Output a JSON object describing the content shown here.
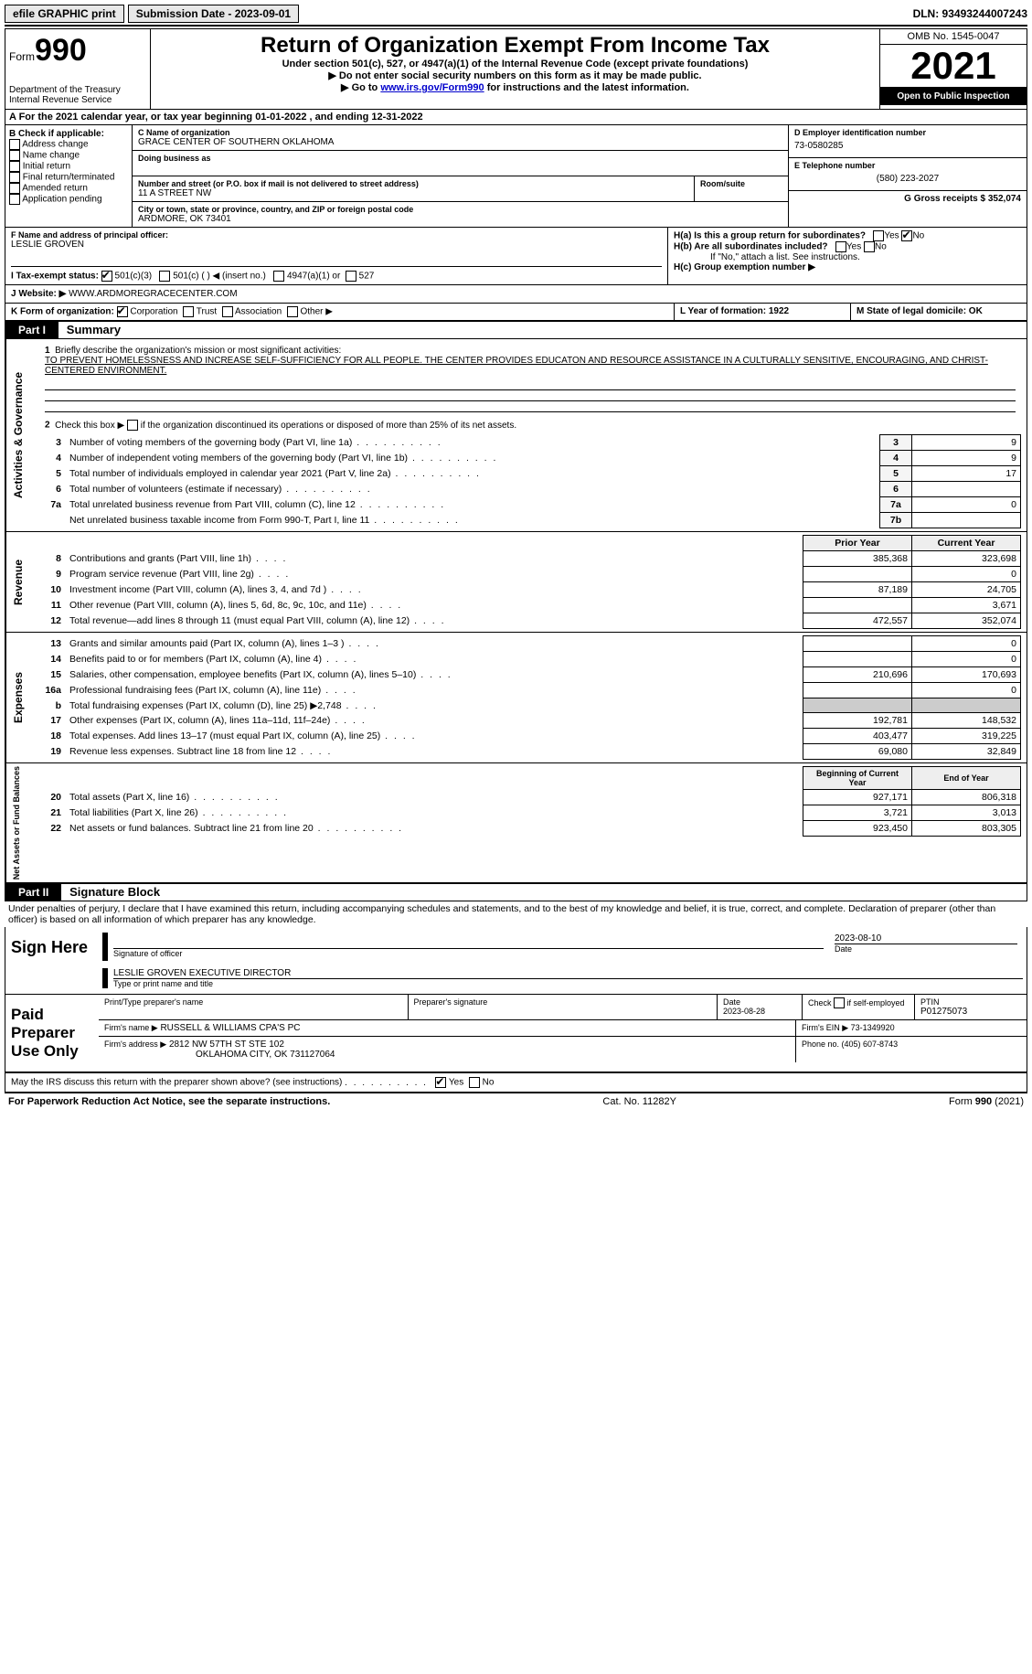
{
  "top": {
    "efile": "efile GRAPHIC print",
    "sub_date_label": "Submission Date - 2023-09-01",
    "dln": "DLN: 93493244007243"
  },
  "header": {
    "form_label": "Form",
    "form_num": "990",
    "dept": "Department of the Treasury",
    "irs": "Internal Revenue Service",
    "title": "Return of Organization Exempt From Income Tax",
    "sub1": "Under section 501(c), 527, or 4947(a)(1) of the Internal Revenue Code (except private foundations)",
    "sub2": "▶ Do not enter social security numbers on this form as it may be made public.",
    "sub3_pre": "▶ Go to ",
    "sub3_link": "www.irs.gov/Form990",
    "sub3_post": " for instructions and the latest information.",
    "omb": "OMB No. 1545-0047",
    "year": "2021",
    "open": "Open to Public Inspection"
  },
  "row_a": "A  For the 2021 calendar year, or tax year beginning 01-01-2022    , and ending 12-31-2022",
  "col_b": {
    "label": "B Check if applicable:",
    "items": [
      "Address change",
      "Name change",
      "Initial return",
      "Final return/terminated",
      "Amended return",
      "Application pending"
    ]
  },
  "col_c": {
    "name_label": "C Name of organization",
    "name": "GRACE CENTER OF SOUTHERN OKLAHOMA",
    "dba_label": "Doing business as",
    "addr_label": "Number and street (or P.O. box if mail is not delivered to street address)",
    "addr": "11 A STREET NW",
    "room_label": "Room/suite",
    "city_label": "City or town, state or province, country, and ZIP or foreign postal code",
    "city": "ARDMORE, OK  73401"
  },
  "col_d": {
    "d_label": "D Employer identification number",
    "ein": "73-0580285",
    "e_label": "E Telephone number",
    "phone": "(580) 223-2027",
    "g_label": "G Gross receipts $ 352,074"
  },
  "row_f": {
    "f_label": "F  Name and address of principal officer:",
    "officer": "LESLIE GROVEN",
    "ha_label": "H(a)  Is this a group return for subordinates?",
    "hb_label": "H(b)  Are all subordinates included?",
    "hb_note": "If \"No,\" attach a list. See instructions.",
    "hc_label": "H(c)  Group exemption number ▶"
  },
  "row_i": {
    "label": "I    Tax-exempt status:",
    "opt1": "501(c)(3)",
    "opt2": "501(c) (  ) ◀ (insert no.)",
    "opt3": "4947(a)(1) or",
    "opt4": "527"
  },
  "row_j": {
    "label": "J   Website: ▶",
    "site": "WWW.ARDMOREGRACECENTER.COM"
  },
  "row_k": {
    "label": "K Form of organization:",
    "corp": "Corporation",
    "trust": "Trust",
    "assoc": "Association",
    "other": "Other ▶",
    "l_label": "L Year of formation: 1922",
    "m_label": "M State of legal domicile: OK"
  },
  "part1": {
    "hdr": "Part I",
    "title": "Summary",
    "line1_label": "Briefly describe the organization's mission or most significant activities:",
    "mission": "TO PREVENT HOMELESSNESS AND INCREASE SELF-SUFFICIENCY FOR ALL PEOPLE. THE CENTER PROVIDES EDUCATON AND RESOURCE ASSISTANCE IN A CULTURALLY SENSITIVE, ENCOURAGING, AND CHRIST-CENTERED ENVIRONMENT.",
    "line2": "Check this box ▶        if the organization discontinued its operations or disposed of more than 25% of its net assets.",
    "rows_top": [
      {
        "n": "3",
        "t": "Number of voting members of the governing body (Part VI, line 1a)",
        "ln": "3",
        "v": "9"
      },
      {
        "n": "4",
        "t": "Number of independent voting members of the governing body (Part VI, line 1b)",
        "ln": "4",
        "v": "9"
      },
      {
        "n": "5",
        "t": "Total number of individuals employed in calendar year 2021 (Part V, line 2a)",
        "ln": "5",
        "v": "17"
      },
      {
        "n": "6",
        "t": "Total number of volunteers (estimate if necessary)",
        "ln": "6",
        "v": ""
      },
      {
        "n": "7a",
        "t": "Total unrelated business revenue from Part VIII, column (C), line 12",
        "ln": "7a",
        "v": "0"
      },
      {
        "n": "",
        "t": "Net unrelated business taxable income from Form 990-T, Part I, line 11",
        "ln": "7b",
        "v": ""
      }
    ],
    "prior_label": "Prior Year",
    "current_label": "Current Year",
    "revenue": [
      {
        "n": "8",
        "t": "Contributions and grants (Part VIII, line 1h)",
        "p": "385,368",
        "c": "323,698"
      },
      {
        "n": "9",
        "t": "Program service revenue (Part VIII, line 2g)",
        "p": "",
        "c": "0"
      },
      {
        "n": "10",
        "t": "Investment income (Part VIII, column (A), lines 3, 4, and 7d )",
        "p": "87,189",
        "c": "24,705"
      },
      {
        "n": "11",
        "t": "Other revenue (Part VIII, column (A), lines 5, 6d, 8c, 9c, 10c, and 11e)",
        "p": "",
        "c": "3,671"
      },
      {
        "n": "12",
        "t": "Total revenue—add lines 8 through 11 (must equal Part VIII, column (A), line 12)",
        "p": "472,557",
        "c": "352,074"
      }
    ],
    "expenses": [
      {
        "n": "13",
        "t": "Grants and similar amounts paid (Part IX, column (A), lines 1–3 )",
        "p": "",
        "c": "0"
      },
      {
        "n": "14",
        "t": "Benefits paid to or for members (Part IX, column (A), line 4)",
        "p": "",
        "c": "0"
      },
      {
        "n": "15",
        "t": "Salaries, other compensation, employee benefits (Part IX, column (A), lines 5–10)",
        "p": "210,696",
        "c": "170,693"
      },
      {
        "n": "16a",
        "t": "Professional fundraising fees (Part IX, column (A), line 11e)",
        "p": "",
        "c": "0"
      },
      {
        "n": "b",
        "t": "Total fundraising expenses (Part IX, column (D), line 25) ▶2,748",
        "p": "gray",
        "c": "gray"
      },
      {
        "n": "17",
        "t": "Other expenses (Part IX, column (A), lines 11a–11d, 11f–24e)",
        "p": "192,781",
        "c": "148,532"
      },
      {
        "n": "18",
        "t": "Total expenses. Add lines 13–17 (must equal Part IX, column (A), line 25)",
        "p": "403,477",
        "c": "319,225"
      },
      {
        "n": "19",
        "t": "Revenue less expenses. Subtract line 18 from line 12",
        "p": "69,080",
        "c": "32,849"
      }
    ],
    "begin_label": "Beginning of Current Year",
    "end_label": "End of Year",
    "netassets": [
      {
        "n": "20",
        "t": "Total assets (Part X, line 16)",
        "p": "927,171",
        "c": "806,318"
      },
      {
        "n": "21",
        "t": "Total liabilities (Part X, line 26)",
        "p": "3,721",
        "c": "3,013"
      },
      {
        "n": "22",
        "t": "Net assets or fund balances. Subtract line 21 from line 20",
        "p": "923,450",
        "c": "803,305"
      }
    ],
    "side_activities": "Activities & Governance",
    "side_revenue": "Revenue",
    "side_expenses": "Expenses",
    "side_net": "Net Assets or Fund Balances"
  },
  "part2": {
    "hdr": "Part II",
    "title": "Signature Block",
    "decl": "Under penalties of perjury, I declare that I have examined this return, including accompanying schedules and statements, and to the best of my knowledge and belief, it is true, correct, and complete. Declaration of preparer (other than officer) is based on all information of which preparer has any knowledge.",
    "sign_here": "Sign Here",
    "sig_officer": "Signature of officer",
    "sig_date": "2023-08-10",
    "date_label": "Date",
    "name_title": "LESLIE GROVEN  EXECUTIVE DIRECTOR",
    "name_title_label": "Type or print name and title",
    "paid": "Paid Preparer Use Only",
    "prep_name_label": "Print/Type preparer's name",
    "prep_sig_label": "Preparer's signature",
    "prep_date_label": "Date",
    "prep_date": "2023-08-28",
    "check_label": "Check          if self-employed",
    "ptin_label": "PTIN",
    "ptin": "P01275073",
    "firm_name_label": "Firm's name      ▶",
    "firm_name": "RUSSELL & WILLIAMS CPA'S PC",
    "firm_ein_label": "Firm's EIN ▶ 73-1349920",
    "firm_addr_label": "Firm's address ▶",
    "firm_addr": "2812 NW 57TH ST STE 102",
    "firm_city": "OKLAHOMA CITY, OK  731127064",
    "firm_phone": "Phone no. (405) 607-8743",
    "may_irs": "May the IRS discuss this return with the preparer shown above? (see instructions)",
    "yes": "Yes",
    "no": "No"
  },
  "footer": {
    "pra": "For Paperwork Reduction Act Notice, see the separate instructions.",
    "cat": "Cat. No. 11282Y",
    "form": "Form 990 (2021)"
  }
}
